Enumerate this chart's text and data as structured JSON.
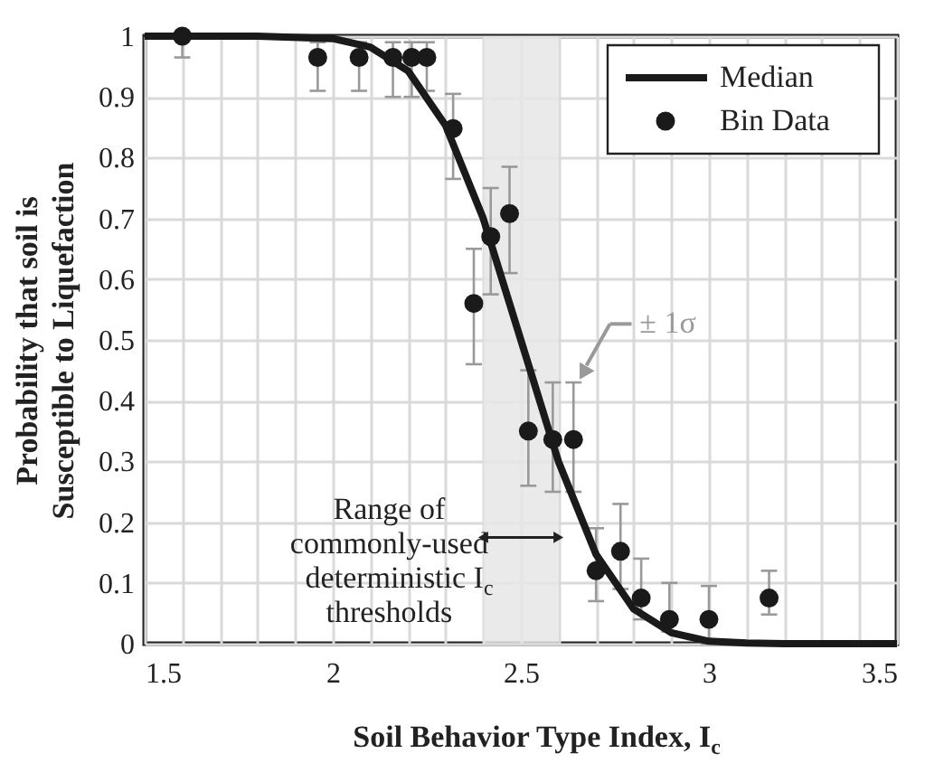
{
  "chart_data": {
    "type": "scatter",
    "xlabel": "Soil Behavior Type Index, I$_{c}$",
    "ylabel": "Probability that soil is\nSusceptible to Liquefaction",
    "xlim": [
      1.5,
      3.5
    ],
    "ylim": [
      0,
      1
    ],
    "xticks": [
      1.5,
      {
        "value": 1.6,
        "label": null
      },
      {
        "value": 1.7,
        "label": null
      },
      {
        "value": 1.8,
        "label": null
      },
      {
        "value": 1.9,
        "label": null
      },
      2,
      {
        "value": 2.1,
        "label": null
      },
      {
        "value": 2.2,
        "label": null
      },
      {
        "value": 2.3,
        "label": null
      },
      {
        "value": 2.4,
        "label": null
      },
      2.5,
      {
        "value": 2.6,
        "label": null
      },
      {
        "value": 2.7,
        "label": null
      },
      {
        "value": 2.8,
        "label": null
      },
      {
        "value": 2.9,
        "label": null
      },
      3,
      {
        "value": 3.1,
        "label": null
      },
      {
        "value": 3.2,
        "label": null
      },
      {
        "value": 3.3,
        "label": null
      },
      {
        "value": 3.4,
        "label": null
      },
      3.5
    ],
    "yticks": [
      0,
      0.1,
      0.2,
      0.3,
      0.4,
      0.5,
      0.6,
      0.7,
      0.8,
      0.9,
      1
    ],
    "grid": true,
    "legend": "top right",
    "series": [
      {
        "name": "Median",
        "type": "line",
        "color": "#1a1a1a",
        "line_style": "solid",
        "x": [
          1.5,
          1.8,
          2.0,
          2.1,
          2.2,
          2.3,
          2.4,
          2.5,
          2.6,
          2.7,
          2.8,
          2.9,
          3.0,
          3.1,
          3.2,
          3.5
        ],
        "values": [
          1.0,
          1.0,
          0.996,
          0.982,
          0.943,
          0.853,
          0.7,
          0.5,
          0.3,
          0.147,
          0.057,
          0.018,
          0.004,
          0.001,
          0.0,
          0.0
        ]
      },
      {
        "name": "Bin Data",
        "color": "#1a1a1a",
        "marker": "circle",
        "x": [
          1.6,
          1.96,
          2.07,
          2.16,
          2.21,
          2.25,
          2.32,
          2.375,
          2.42,
          2.47,
          2.52,
          2.585,
          2.64,
          2.7,
          2.765,
          2.82,
          2.895,
          3.0,
          3.16
        ],
        "values": [
          1.0,
          0.965,
          0.965,
          0.965,
          0.965,
          0.965,
          0.848,
          0.56,
          0.67,
          0.708,
          0.35,
          0.336,
          0.336,
          0.12,
          0.152,
          0.075,
          0.04,
          0.04,
          0.075
        ],
        "errors": [
          [
            0.965,
            1.0
          ],
          [
            0.91,
            0.99
          ],
          [
            0.91,
            0.99
          ],
          [
            0.9,
            0.99
          ],
          [
            0.9,
            0.99
          ],
          [
            0.91,
            0.99
          ],
          [
            0.765,
            0.905
          ],
          [
            0.46,
            0.65
          ],
          [
            0.575,
            0.75
          ],
          [
            0.61,
            0.785
          ],
          [
            0.26,
            0.45
          ],
          [
            0.25,
            0.43
          ],
          [
            0.25,
            0.43
          ],
          [
            0.07,
            0.19
          ],
          [
            0.09,
            0.23
          ],
          [
            0.04,
            0.14
          ],
          [
            0.02,
            0.1
          ],
          [
            0.0,
            0.095
          ],
          [
            0.048,
            0.12
          ]
        ]
      }
    ],
    "bands": [
      {
        "axis": "x",
        "from": 2.4,
        "to": 2.6,
        "color": "#e6e6e6",
        "label": "Range of\ncommonly-used\ndeterministic I$_{c}$\nthresholds"
      }
    ],
    "annotations": [
      {
        "text": "± 1σ",
        "x": 2.66,
        "y": 0.44
      }
    ]
  }
}
